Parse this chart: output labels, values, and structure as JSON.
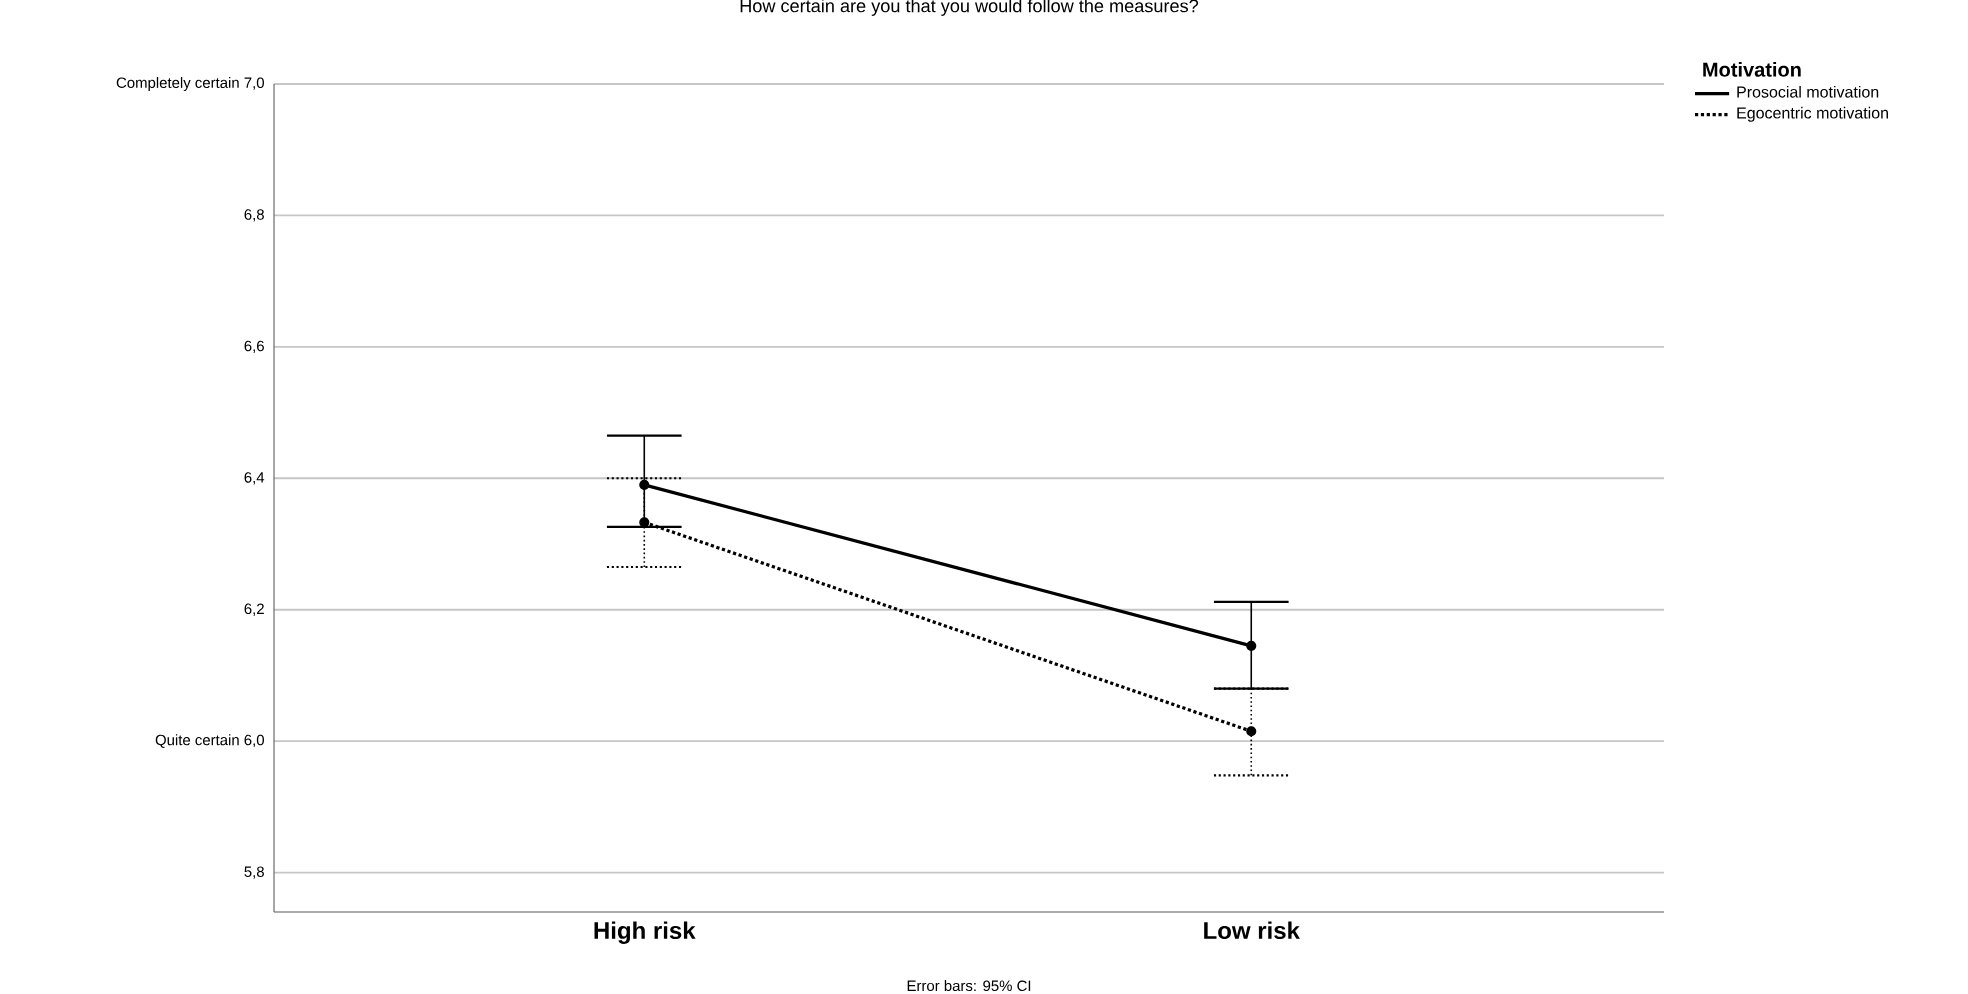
{
  "chart_data": {
    "type": "line",
    "title": "How certain are you that you would follow the measures?",
    "categories": [
      "High risk",
      "Low risk"
    ],
    "series": [
      {
        "name": "Prosocial motivation",
        "color": "#000000",
        "line_style": "solid",
        "values": [
          6.39,
          6.145
        ],
        "errors": [
          [
            6.326,
            6.465
          ],
          [
            6.08,
            6.212
          ]
        ]
      },
      {
        "name": "Egocentric motivation",
        "color": "#000000",
        "line_style": "dotted",
        "values": [
          6.333,
          6.015
        ],
        "errors": [
          [
            6.265,
            6.4
          ],
          [
            5.948,
            6.08
          ]
        ]
      }
    ],
    "ylim": [
      5.74,
      7.0
    ],
    "yticks": [
      {
        "value": 5.8,
        "label": "5,8"
      },
      {
        "value": 6.0,
        "label": "Quite certain    6,0"
      },
      {
        "value": 6.2,
        "label": "6,2"
      },
      {
        "value": 6.4,
        "label": "6,4"
      },
      {
        "value": 6.6,
        "label": "6,6"
      },
      {
        "value": 6.8,
        "label": "6,8"
      },
      {
        "value": 7.0,
        "label": "Completely certain    7,0"
      }
    ],
    "grid": "y",
    "legend": "top right",
    "legend_title": "Motivation",
    "marker": "circle",
    "annotations": [
      "Error bars: 95% CI"
    ]
  }
}
